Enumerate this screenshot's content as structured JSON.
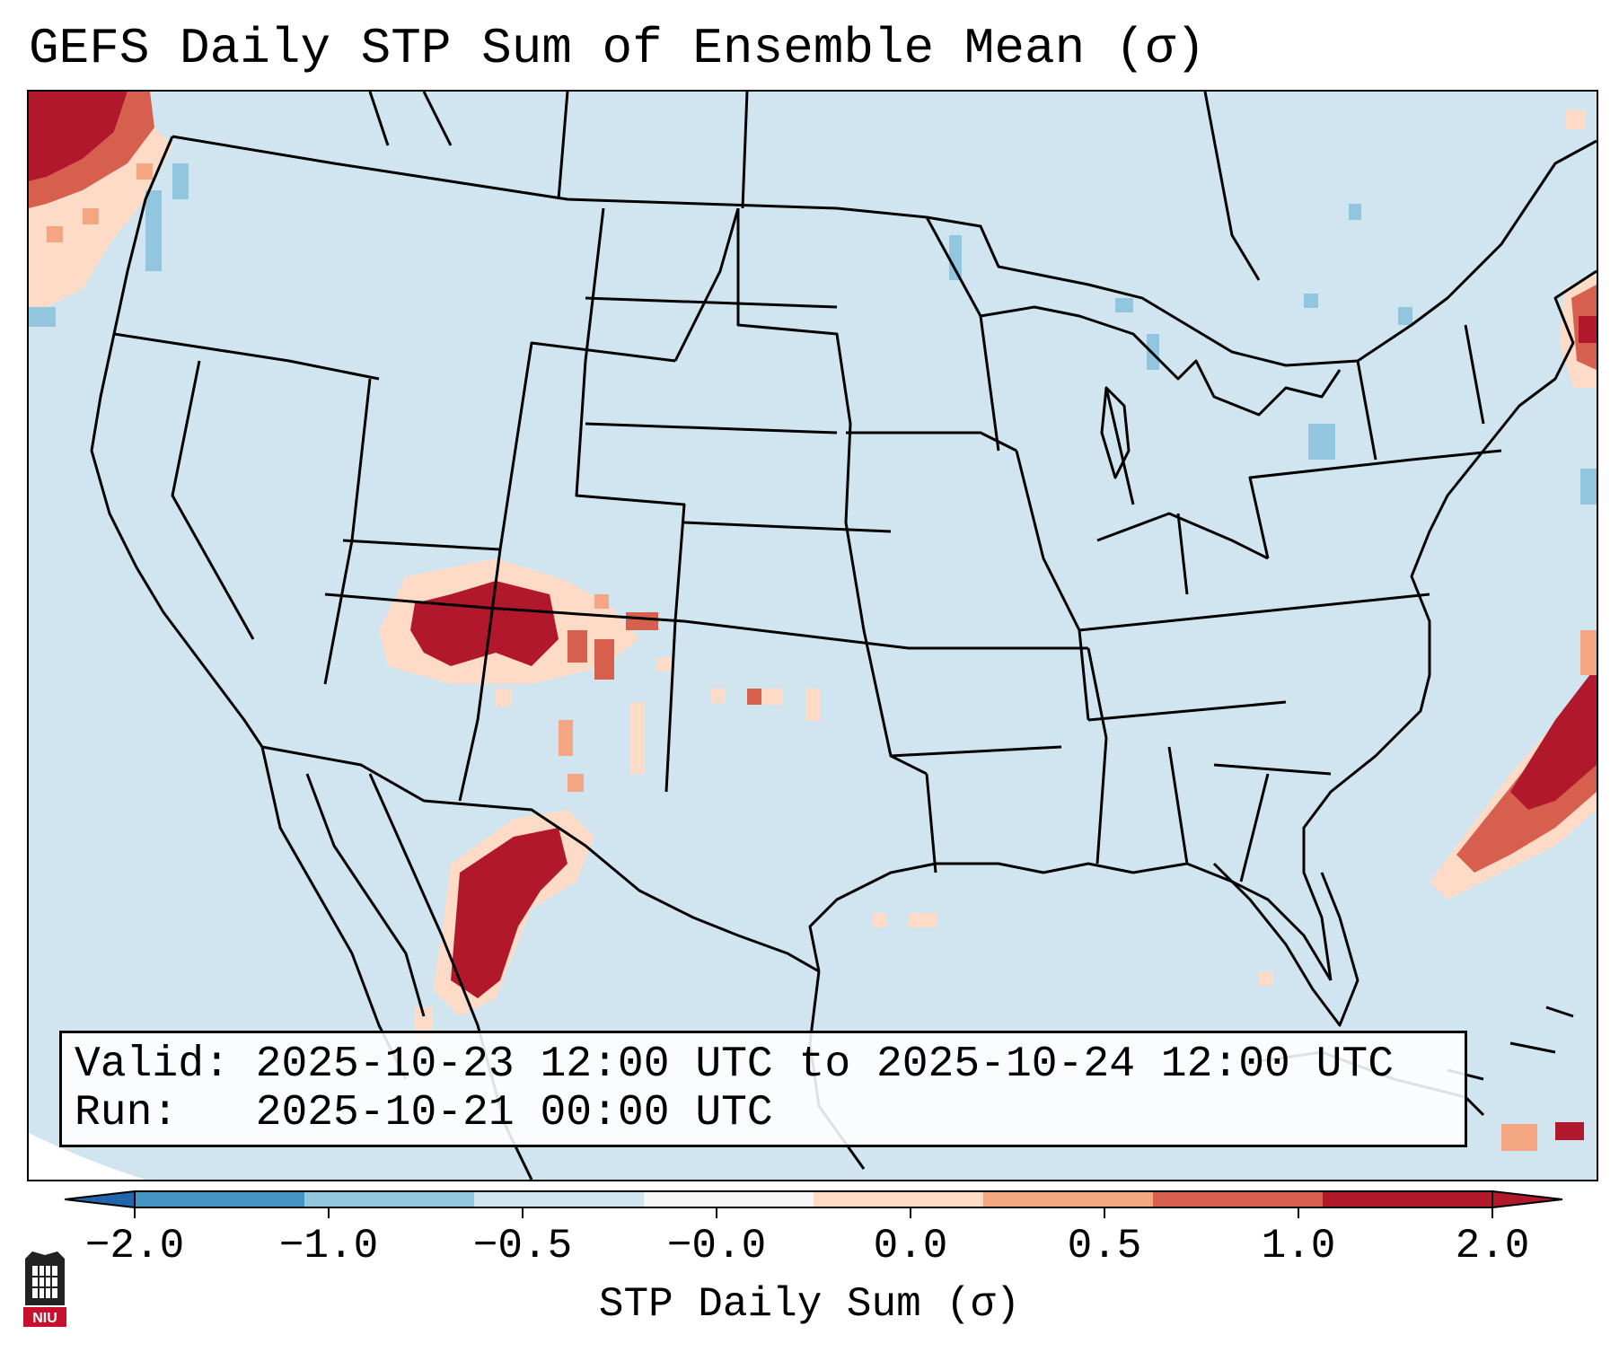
{
  "title": "GEFS Daily STP Sum of Ensemble Mean (σ)",
  "info": {
    "valid_line": "Valid: 2025-10-23 12:00 UTC to 2025-10-24 12:00 UTC",
    "run_line": "Run:   2025-10-21 00:00 UTC"
  },
  "colorbar": {
    "label": "STP Daily Sum (σ)",
    "ticks": [
      "−2.0",
      "−1.0",
      "−0.5",
      "−0.0",
      "0.0",
      "0.5",
      "1.0",
      "2.0"
    ],
    "colors": [
      "#4393c3",
      "#92c5de",
      "#d1e5f0",
      "#f7f7f7",
      "#fddbc7",
      "#f4a582",
      "#d6604d",
      "#b2182b"
    ],
    "under_color": "#2166ac",
    "over_color": "#b2182b"
  },
  "map": {
    "background_color": "#d1e5f0",
    "domain": "CONUS"
  },
  "logo": {
    "text": "NIU"
  }
}
